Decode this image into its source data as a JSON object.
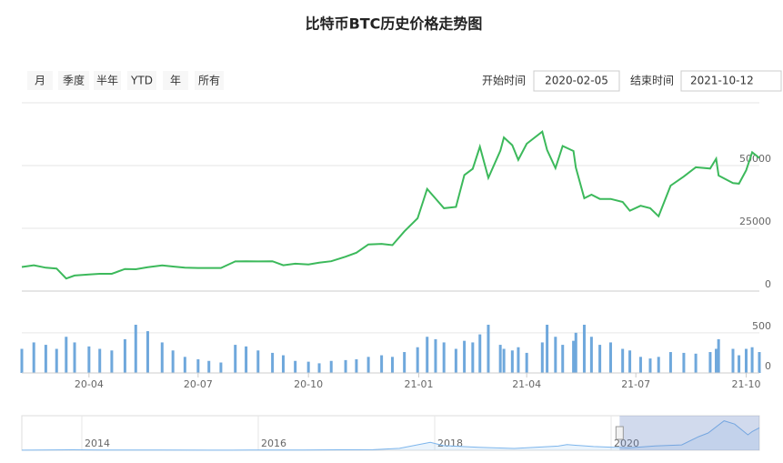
{
  "range_selector": {
    "buttons": [
      "月",
      "季度",
      "半年",
      "YTD",
      "年",
      "所有"
    ],
    "start_label": "开始时间",
    "start_value": "2020-02-05",
    "end_label": "结束时间",
    "end_value": "2021-10-12"
  },
  "chart_data": [
    {
      "type": "line",
      "title": "比特币BTC历史价格走势图",
      "x": [
        "2020-02-05",
        "2020-02-15",
        "2020-02-25",
        "2020-03-05",
        "2020-03-13",
        "2020-03-20",
        "2020-04-01",
        "2020-04-10",
        "2020-04-20",
        "2020-05-01",
        "2020-05-10",
        "2020-05-20",
        "2020-06-01",
        "2020-06-10",
        "2020-06-20",
        "2020-07-01",
        "2020-07-10",
        "2020-07-20",
        "2020-08-01",
        "2020-08-10",
        "2020-08-20",
        "2020-09-01",
        "2020-09-10",
        "2020-09-20",
        "2020-10-01",
        "2020-10-10",
        "2020-10-20",
        "2020-11-01",
        "2020-11-10",
        "2020-11-20",
        "2020-12-01",
        "2020-12-10",
        "2020-12-20",
        "2020-12-31",
        "2021-01-08",
        "2021-01-15",
        "2021-01-22",
        "2021-02-01",
        "2021-02-08",
        "2021-02-15",
        "2021-02-21",
        "2021-02-28",
        "2021-03-10",
        "2021-03-13",
        "2021-03-20",
        "2021-03-25",
        "2021-04-01",
        "2021-04-14",
        "2021-04-18",
        "2021-04-25",
        "2021-05-01",
        "2021-05-10",
        "2021-05-12",
        "2021-05-19",
        "2021-05-25",
        "2021-06-01",
        "2021-06-10",
        "2021-06-20",
        "2021-06-26",
        "2021-07-05",
        "2021-07-13",
        "2021-07-20",
        "2021-07-30",
        "2021-08-10",
        "2021-08-20",
        "2021-09-01",
        "2021-09-06",
        "2021-09-08",
        "2021-09-20",
        "2021-09-25",
        "2021-10-01",
        "2021-10-06",
        "2021-10-12"
      ],
      "series": [
        {
          "color": "#3cb95b",
          "values": [
            9600,
            10300,
            9300,
            9000,
            5000,
            6200,
            6600,
            6900,
            6900,
            8800,
            8700,
            9500,
            10200,
            9800,
            9300,
            9200,
            9200,
            9200,
            11800,
            11900,
            11800,
            11900,
            10300,
            10900,
            10600,
            11300,
            11900,
            13700,
            15300,
            18600,
            18800,
            18300,
            23800,
            29000,
            40700,
            36800,
            33000,
            33500,
            46200,
            48700,
            57500,
            45100,
            55900,
            61200,
            58100,
            52300,
            58700,
            63500,
            56200,
            49000,
            57800,
            55800,
            49200,
            37000,
            38400,
            36700,
            36700,
            35500,
            32000,
            34000,
            33000,
            29800,
            42000,
            45600,
            49300,
            48800,
            52700,
            46000,
            43000,
            42800,
            48100,
            55300,
            53000
          ]
        }
      ],
      "xlim": [
        "2020-02-05",
        "2021-10-12"
      ],
      "ylim": [
        0,
        75000
      ],
      "yticks": [
        0,
        25000,
        50000
      ],
      "grid": true
    },
    {
      "type": "bar",
      "x": [
        "2020-02-05",
        "2020-02-15",
        "2020-02-25",
        "2020-03-05",
        "2020-03-13",
        "2020-03-20",
        "2020-04-01",
        "2020-04-10",
        "2020-04-20",
        "2020-05-01",
        "2020-05-10",
        "2020-05-20",
        "2020-06-01",
        "2020-06-10",
        "2020-06-20",
        "2020-07-01",
        "2020-07-10",
        "2020-07-20",
        "2020-08-01",
        "2020-08-10",
        "2020-08-20",
        "2020-09-01",
        "2020-09-10",
        "2020-09-20",
        "2020-10-01",
        "2020-10-10",
        "2020-10-20",
        "2020-11-01",
        "2020-11-10",
        "2020-11-20",
        "2020-12-01",
        "2020-12-10",
        "2020-12-20",
        "2020-12-31",
        "2021-01-08",
        "2021-01-15",
        "2021-01-22",
        "2021-02-01",
        "2021-02-08",
        "2021-02-15",
        "2021-02-21",
        "2021-02-28",
        "2021-03-10",
        "2021-03-13",
        "2021-03-20",
        "2021-03-25",
        "2021-04-01",
        "2021-04-14",
        "2021-04-18",
        "2021-04-25",
        "2021-05-01",
        "2021-05-10",
        "2021-05-12",
        "2021-05-19",
        "2021-05-25",
        "2021-06-01",
        "2021-06-10",
        "2021-06-20",
        "2021-06-26",
        "2021-07-05",
        "2021-07-13",
        "2021-07-20",
        "2021-07-30",
        "2021-08-10",
        "2021-08-20",
        "2021-09-01",
        "2021-09-06",
        "2021-09-08",
        "2021-09-20",
        "2021-09-25",
        "2021-10-01",
        "2021-10-06",
        "2021-10-12"
      ],
      "color": "#6fa8dc",
      "values": [
        300,
        380,
        350,
        300,
        450,
        380,
        330,
        300,
        280,
        420,
        600,
        520,
        380,
        280,
        200,
        170,
        150,
        130,
        350,
        330,
        280,
        250,
        220,
        150,
        140,
        120,
        150,
        160,
        170,
        200,
        220,
        200,
        260,
        320,
        450,
        420,
        380,
        300,
        400,
        380,
        480,
        600,
        350,
        300,
        280,
        320,
        250,
        380,
        600,
        450,
        350,
        400,
        500,
        600,
        450,
        350,
        380,
        300,
        280,
        200,
        180,
        200,
        260,
        250,
        240,
        260,
        300,
        420,
        300,
        220,
        300,
        320,
        260
      ],
      "xlim": [
        "2020-02-05",
        "2021-10-12"
      ],
      "ylim": [
        0,
        600
      ],
      "yticks": [
        0,
        500
      ],
      "grid": true,
      "xticks": [
        {
          "value": "2020-04-01",
          "label": "20-04"
        },
        {
          "value": "2020-07-01",
          "label": "20-07"
        },
        {
          "value": "2020-10-01",
          "label": "20-10"
        },
        {
          "value": "2021-01-01",
          "label": "21-01"
        },
        {
          "value": "2021-04-01",
          "label": "21-04"
        },
        {
          "value": "2021-07-01",
          "label": "21-07"
        },
        {
          "value": "2021-10-01",
          "label": "21-10"
        }
      ]
    },
    {
      "type": "area",
      "color": "#7cb5ec",
      "x": [
        2013.32,
        2013.9,
        2014.2,
        2014.5,
        2014.9,
        2015.5,
        2015.9,
        2016.5,
        2016.9,
        2017.3,
        2017.6,
        2017.95,
        2018.1,
        2018.5,
        2018.9,
        2019.4,
        2019.5,
        2019.8,
        2020.2,
        2020.5,
        2020.8,
        2020.99,
        2021.1,
        2021.28,
        2021.4,
        2021.55,
        2021.6,
        2021.68
      ],
      "values": [
        130,
        1000,
        600,
        600,
        350,
        250,
        400,
        650,
        950,
        1200,
        4000,
        17000,
        10000,
        6500,
        3800,
        9000,
        12000,
        8000,
        5000,
        9200,
        11500,
        29000,
        37000,
        63000,
        56000,
        33000,
        40000,
        48000
      ],
      "xlim": [
        2013.32,
        2021.68
      ],
      "ylim": [
        0,
        70000
      ],
      "xticks": [
        2014,
        2016,
        2018,
        2020
      ]
    }
  ]
}
